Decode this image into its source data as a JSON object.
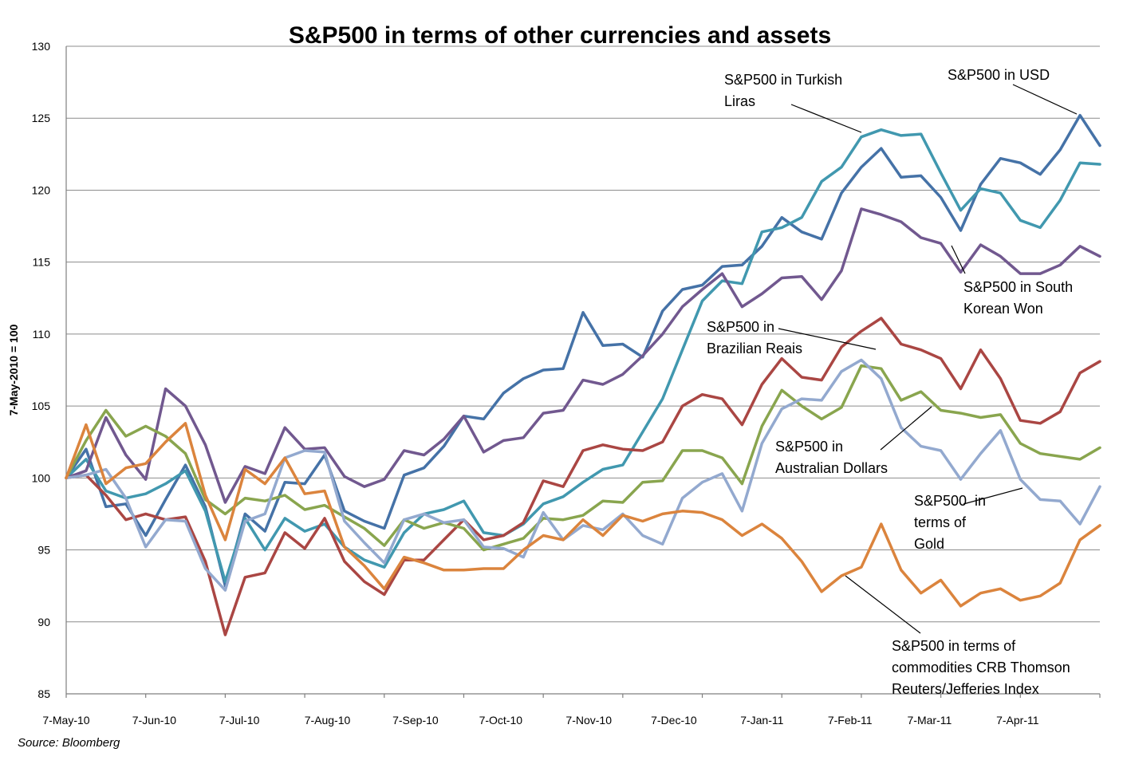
{
  "chart_data": {
    "type": "line",
    "title": "S&P500 in terms of other currencies and assets",
    "ylabel": "7-May-2010 = 100",
    "xlabel": "",
    "source": "Source: Bloomberg",
    "ylim": [
      85,
      130
    ],
    "yticks": [
      85,
      90,
      95,
      100,
      105,
      110,
      115,
      120,
      125,
      130
    ],
    "xticks": [
      "7-May-10",
      "7-Jun-10",
      "7-Jul-10",
      "7-Aug-10",
      "7-Sep-10",
      "7-Oct-10",
      "7-Nov-10",
      "7-Dec-10",
      "7-Jan-11",
      "7-Feb-11",
      "7-Mar-11",
      "7-Apr-11"
    ],
    "grid": true,
    "legend": "annotations",
    "series": [
      {
        "name": "S&P500 in USD",
        "color": "#4572a7",
        "values": [
          100,
          102,
          98,
          98.2,
          96,
          98.5,
          100.9,
          98,
          92.5,
          97.5,
          96.3,
          99.7,
          99.6,
          101.6,
          97.7,
          97,
          96.5,
          100.2,
          100.7,
          102.2,
          104.3,
          104.1,
          105.9,
          106.9,
          107.5,
          107.6,
          111.5,
          109.2,
          109.3,
          108.4,
          111.6,
          113.1,
          113.4,
          114.7,
          114.8,
          116.1,
          118.1,
          117.1,
          116.6,
          119.8,
          121.6,
          122.9,
          120.9,
          121,
          119.5,
          117.2,
          120.4,
          122.2,
          121.9,
          121.1,
          122.8,
          125.2,
          123.1
        ]
      },
      {
        "name": "S&P500 in Turkish Liras",
        "color": "#4198af",
        "values": [
          100,
          101.3,
          99.1,
          98.6,
          98.9,
          99.6,
          100.5,
          97.7,
          92.8,
          97.2,
          95,
          97.2,
          96.3,
          96.8,
          95.2,
          94.3,
          93.8,
          96.2,
          97.5,
          97.8,
          98.4,
          96.2,
          96,
          96.8,
          98.2,
          98.7,
          99.7,
          100.6,
          100.9,
          103.2,
          105.5,
          108.9,
          112.3,
          113.7,
          113.5,
          117.1,
          117.4,
          118.1,
          120.6,
          121.6,
          123.7,
          124.2,
          123.8,
          123.9,
          121.2,
          118.6,
          120.1,
          119.8,
          117.9,
          117.4,
          119.3,
          121.9,
          121.8
        ]
      },
      {
        "name": "S&P500 in South Korean Won",
        "color": "#71588f",
        "values": [
          100,
          100.5,
          104.2,
          101.6,
          99.9,
          106.2,
          105,
          102.3,
          98.3,
          100.8,
          100.3,
          103.5,
          102,
          102.1,
          100.1,
          99.4,
          99.9,
          101.9,
          101.6,
          102.7,
          104.3,
          101.8,
          102.6,
          102.8,
          104.5,
          104.7,
          106.8,
          106.5,
          107.2,
          108.5,
          110,
          111.9,
          113.1,
          114.2,
          111.9,
          112.8,
          113.9,
          114,
          112.4,
          114.4,
          118.7,
          118.3,
          117.8,
          116.7,
          116.3,
          114.3,
          116.2,
          115.4,
          114.2,
          114.2,
          114.8,
          116.1,
          115.4
        ]
      },
      {
        "name": "S&P500 in Brazilian Reais",
        "color": "#aa4643",
        "values": [
          100,
          100.2,
          98.8,
          97.1,
          97.5,
          97.1,
          97.3,
          94.2,
          89.1,
          93.1,
          93.4,
          96.2,
          95.1,
          97.2,
          94.2,
          92.8,
          91.9,
          94.3,
          94.3,
          95.7,
          97.1,
          95.7,
          96,
          96.9,
          99.8,
          99.4,
          101.9,
          102.3,
          102,
          101.9,
          102.5,
          105,
          105.8,
          105.5,
          103.7,
          106.5,
          108.3,
          107,
          106.8,
          109.1,
          110.2,
          111.1,
          109.3,
          108.9,
          108.3,
          106.2,
          108.9,
          106.9,
          104,
          103.8,
          104.6,
          107.3,
          108.1
        ]
      },
      {
        "name": "S&P500 in Australian Dollars",
        "color": "#89a54e",
        "values": [
          100,
          102.6,
          104.7,
          102.9,
          103.6,
          102.9,
          101.7,
          98.5,
          97.5,
          98.6,
          98.4,
          98.8,
          97.8,
          98.1,
          97.3,
          96.5,
          95.3,
          97.1,
          96.5,
          96.9,
          96.5,
          95,
          95.4,
          95.8,
          97.2,
          97.1,
          97.4,
          98.4,
          98.3,
          99.7,
          99.8,
          101.9,
          101.9,
          101.4,
          99.6,
          103.6,
          106.1,
          105,
          104.1,
          104.9,
          107.8,
          107.6,
          105.4,
          106,
          104.7,
          104.5,
          104.2,
          104.4,
          102.4,
          101.7,
          101.5,
          101.3,
          102.1
        ]
      },
      {
        "name": "S&P500 in terms of Gold",
        "color": "#93a9cf",
        "values": [
          100,
          100.2,
          100.6,
          98.6,
          95.2,
          97.1,
          97,
          93.7,
          92.2,
          97,
          97.5,
          101.4,
          101.9,
          101.8,
          97,
          95.5,
          94.1,
          97.1,
          97.5,
          96.9,
          97.1,
          95.2,
          95.1,
          94.5,
          97.6,
          95.7,
          96.7,
          96.4,
          97.5,
          96,
          95.4,
          98.6,
          99.7,
          100.3,
          97.7,
          102.4,
          104.8,
          105.5,
          105.4,
          107.4,
          108.2,
          106.9,
          103.5,
          102.2,
          101.9,
          99.9,
          101.7,
          103.3,
          99.9,
          98.5,
          98.4,
          96.8,
          99.4
        ]
      },
      {
        "name": "S&P500 in terms of commodities CRB Thomson Reuters/Jefferies Index",
        "color": "#db843d",
        "values": [
          100,
          103.7,
          99.6,
          100.7,
          101,
          102.5,
          103.8,
          98.8,
          95.7,
          100.6,
          99.6,
          101.4,
          98.9,
          99.1,
          95.2,
          93.9,
          92.3,
          94.5,
          94.1,
          93.6,
          93.6,
          93.7,
          93.7,
          95,
          96,
          95.7,
          97.1,
          96,
          97.4,
          97,
          97.5,
          97.7,
          97.6,
          97.1,
          96,
          96.8,
          95.8,
          94.2,
          92.1,
          93.2,
          93.8,
          96.8,
          93.6,
          92,
          92.9,
          91.1,
          92,
          92.3,
          91.5,
          91.8,
          92.7,
          95.7,
          96.7
        ]
      }
    ],
    "annotations": [
      {
        "lines": [
          "S&P500 in Turkish",
          "Liras"
        ]
      },
      {
        "lines": [
          "S&P500 in USD"
        ]
      },
      {
        "lines": [
          "S&P500 in South",
          "Korean Won"
        ]
      },
      {
        "lines": [
          "S&P500 in",
          "Brazilian Reais"
        ]
      },
      {
        "lines": [
          "S&P500 in",
          "Australian Dollars"
        ]
      },
      {
        "lines": [
          "S&P500  in",
          "terms of",
          "Gold"
        ]
      },
      {
        "lines": [
          "S&P500 in terms of",
          "commodities CRB Thomson",
          "Reuters/Jefferies Index"
        ]
      }
    ]
  }
}
